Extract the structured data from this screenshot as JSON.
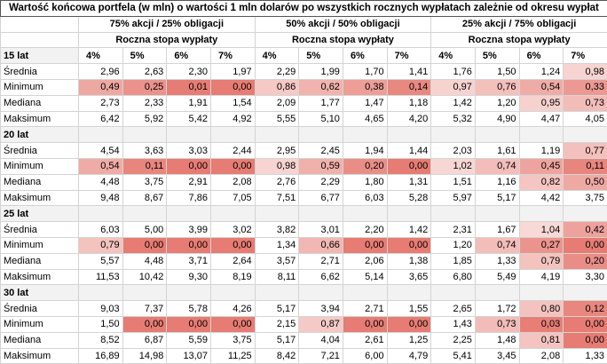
{
  "title": "Wartość końcowa portfela (w mln) o wartości 1 mln dolarów po wszystkich rocznych wypłatach zależnie od okresu wypłat",
  "groups": [
    "75% akcji / 25% obligacji",
    "50% akcji / 50% obligacji",
    "25% akcji / 75% obligacji"
  ],
  "subheader": "Roczna stopa wypłaty",
  "rates": [
    "4%",
    "5%",
    "6%",
    "7%"
  ],
  "sections": [
    {
      "label": "15 lat",
      "rows": [
        {
          "label": "Średnia",
          "values": [
            "2,96",
            "2,63",
            "2,30",
            "1,97",
            "2,29",
            "1,99",
            "1,70",
            "1,41",
            "1,76",
            "1,50",
            "1,24",
            "0,98"
          ]
        },
        {
          "label": "Minimum",
          "values": [
            "0,49",
            "0,25",
            "0,01",
            "0,00",
            "0,86",
            "0,62",
            "0,38",
            "0,14",
            "0,97",
            "0,76",
            "0,54",
            "0,33"
          ]
        },
        {
          "label": "Mediana",
          "values": [
            "2,73",
            "2,33",
            "1,91",
            "1,54",
            "2,09",
            "1,77",
            "1,47",
            "1,18",
            "1,42",
            "1,20",
            "0,95",
            "0,73"
          ]
        },
        {
          "label": "Maksimum",
          "values": [
            "6,42",
            "5,92",
            "5,42",
            "4,92",
            "5,55",
            "5,10",
            "4,65",
            "4,20",
            "5,32",
            "4,90",
            "4,47",
            "4,05"
          ]
        }
      ]
    },
    {
      "label": "20 lat",
      "rows": [
        {
          "label": "Średnia",
          "values": [
            "4,54",
            "3,63",
            "3,03",
            "2,44",
            "2,95",
            "2,45",
            "1,94",
            "1,44",
            "2,03",
            "1,61",
            "1,19",
            "0,77"
          ]
        },
        {
          "label": "Minimum",
          "values": [
            "0,54",
            "0,11",
            "0,00",
            "0,00",
            "0,98",
            "0,59",
            "0,20",
            "0,00",
            "1,02",
            "0,74",
            "0,45",
            "0,11"
          ]
        },
        {
          "label": "Mediana",
          "values": [
            "4,48",
            "3,75",
            "2,91",
            "2,08",
            "2,76",
            "2,29",
            "1,80",
            "1,31",
            "1,51",
            "1,16",
            "0,82",
            "0,50"
          ]
        },
        {
          "label": "Maksimum",
          "values": [
            "9,48",
            "8,67",
            "7,86",
            "7,05",
            "7,51",
            "6,77",
            "6,03",
            "5,28",
            "5,97",
            "5,17",
            "4,42",
            "3,75"
          ]
        }
      ]
    },
    {
      "label": "25 lat",
      "rows": [
        {
          "label": "Średnia",
          "values": [
            "6,03",
            "5,00",
            "3,99",
            "3,02",
            "3,82",
            "3,01",
            "2,20",
            "1,42",
            "2,31",
            "1,67",
            "1,04",
            "0,42"
          ]
        },
        {
          "label": "Minimum",
          "values": [
            "0,79",
            "0,00",
            "0,00",
            "0,00",
            "1,34",
            "0,66",
            "0,00",
            "0,00",
            "1,20",
            "0,74",
            "0,27",
            "0,00"
          ]
        },
        {
          "label": "Mediana",
          "values": [
            "5,57",
            "4,48",
            "3,71",
            "2,64",
            "3,57",
            "2,71",
            "2,06",
            "1,38",
            "1,85",
            "1,33",
            "0,79",
            "0,20"
          ]
        },
        {
          "label": "Maksimum",
          "values": [
            "11,53",
            "10,42",
            "9,30",
            "8,19",
            "8,11",
            "6,62",
            "5,14",
            "3,65",
            "6,80",
            "5,49",
            "4,19",
            "3,30"
          ]
        }
      ]
    },
    {
      "label": "30 lat",
      "rows": [
        {
          "label": "Średnia",
          "values": [
            "9,03",
            "7,37",
            "5,78",
            "4,26",
            "5,17",
            "3,94",
            "2,71",
            "1,55",
            "2,65",
            "1,72",
            "0,80",
            "0,12"
          ]
        },
        {
          "label": "Minimum",
          "values": [
            "1,50",
            "0,00",
            "0,00",
            "0,00",
            "2,15",
            "0,87",
            "0,00",
            "0,00",
            "1,43",
            "0,73",
            "0,03",
            "0,00"
          ]
        },
        {
          "label": "Mediana",
          "values": [
            "8,52",
            "6,87",
            "5,59",
            "3,75",
            "5,17",
            "4,04",
            "2,61",
            "1,25",
            "2,25",
            "1,48",
            "0,81",
            "0,00"
          ]
        },
        {
          "label": "Maksimum",
          "values": [
            "16,89",
            "14,98",
            "13,07",
            "11,25",
            "8,42",
            "7,21",
            "6,00",
            "4,79",
            "5,41",
            "3,45",
            "2,08",
            "1,33"
          ]
        }
      ]
    }
  ]
}
